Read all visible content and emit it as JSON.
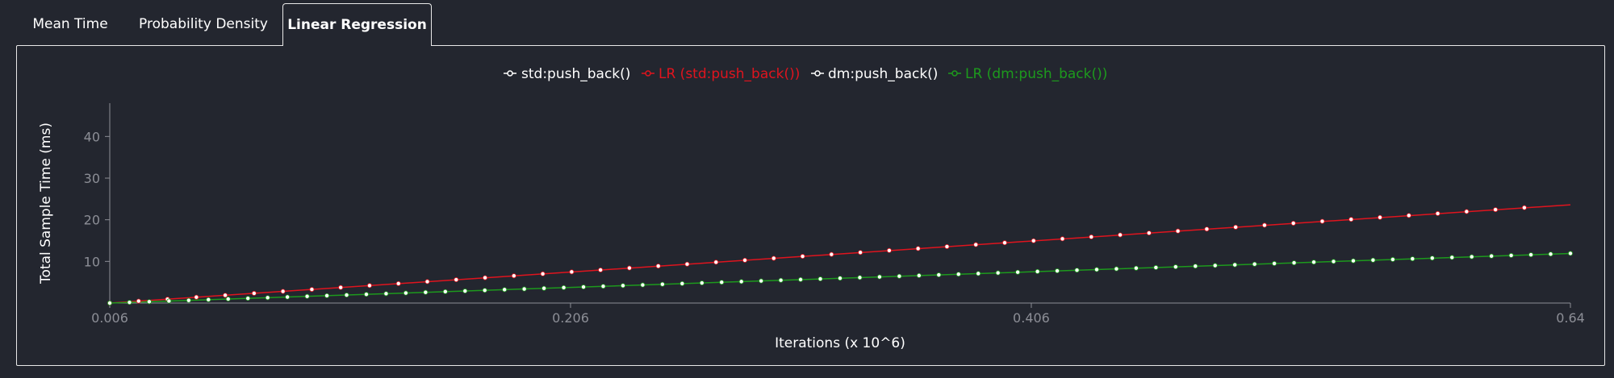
{
  "tabs": [
    {
      "label": "Mean Time",
      "active": false
    },
    {
      "label": "Probability Density",
      "active": false
    },
    {
      "label": "Linear Regression",
      "active": true
    }
  ],
  "colors": {
    "background": "#23262f",
    "std_points": "#ffffff",
    "std_lr": "#e0141e",
    "dm_points": "#ffffff",
    "dm_lr": "#1d9a1d",
    "axis": "#8c8e96"
  },
  "chart_data": {
    "type": "scatter",
    "title": "",
    "xlabel": "Iterations (x 10^6)",
    "ylabel": "Total Sample Time (ms)",
    "xlim": [
      0.006,
      0.64
    ],
    "ylim": [
      0,
      48
    ],
    "x_ticks": [
      "0.006",
      "0.206",
      "0.406",
      "0.64"
    ],
    "y_ticks": [
      "10",
      "20",
      "30",
      "40"
    ],
    "grid": false,
    "legend_position": "top-center",
    "legend": [
      "std:push_back()",
      "LR (std:push_back())",
      "dm:push_back()",
      "LR (dm:push_back())"
    ],
    "series": [
      {
        "name": "std:push_back()",
        "kind": "points",
        "x_start": 0.006,
        "x_end": 0.62,
        "count": 50,
        "slope": 37.3,
        "intercept": 0.0
      },
      {
        "name": "LR (std:push_back())",
        "kind": "line",
        "points": [
          [
            0.006,
            0.0
          ],
          [
            0.64,
            23.6
          ]
        ]
      },
      {
        "name": "dm:push_back()",
        "kind": "points",
        "x_start": 0.006,
        "x_end": 0.64,
        "count": 75,
        "slope": 18.8,
        "intercept": 0.0
      },
      {
        "name": "LR (dm:push_back())",
        "kind": "line",
        "points": [
          [
            0.006,
            0.0
          ],
          [
            0.64,
            11.9
          ]
        ]
      }
    ]
  }
}
